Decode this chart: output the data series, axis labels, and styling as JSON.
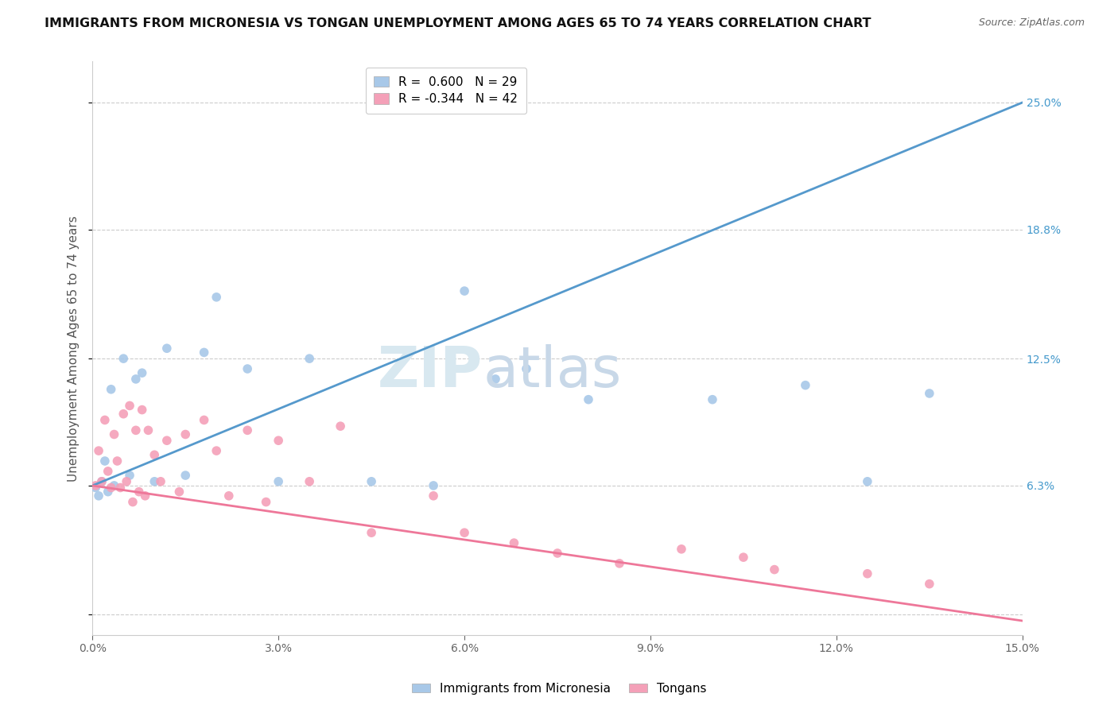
{
  "title": "IMMIGRANTS FROM MICRONESIA VS TONGAN UNEMPLOYMENT AMONG AGES 65 TO 74 YEARS CORRELATION CHART",
  "source": "Source: ZipAtlas.com",
  "ylabel": "Unemployment Among Ages 65 to 74 years",
  "xlim": [
    0.0,
    15.0
  ],
  "ylim": [
    -1.0,
    27.0
  ],
  "xticks": [
    0.0,
    3.0,
    6.0,
    9.0,
    12.0,
    15.0
  ],
  "xticklabels": [
    "0.0%",
    "3.0%",
    "6.0%",
    "9.0%",
    "12.0%",
    "15.0%"
  ],
  "ytick_positions": [
    0.0,
    6.3,
    12.5,
    18.8,
    25.0
  ],
  "ytick_labels": [
    "",
    "6.3%",
    "12.5%",
    "18.8%",
    "25.0%"
  ],
  "blue_color": "#a8c8e8",
  "pink_color": "#f4a0b8",
  "blue_line_color": "#5599cc",
  "pink_line_color": "#ee7799",
  "blue_label": "Immigrants from Micronesia",
  "pink_label": "Tongans",
  "blue_R": 0.6,
  "blue_N": 29,
  "pink_R": -0.344,
  "pink_N": 42,
  "watermark_zip": "ZIP",
  "watermark_atlas": "atlas",
  "background_color": "#ffffff",
  "blue_scatter_x": [
    0.05,
    0.1,
    0.15,
    0.2,
    0.25,
    0.3,
    0.35,
    0.5,
    0.6,
    0.7,
    0.8,
    1.0,
    1.2,
    1.5,
    1.8,
    2.0,
    2.5,
    3.0,
    3.5,
    4.5,
    5.5,
    6.0,
    6.5,
    7.0,
    8.0,
    10.0,
    11.5,
    12.5,
    13.5
  ],
  "blue_scatter_y": [
    6.2,
    5.8,
    6.5,
    7.5,
    6.0,
    11.0,
    6.3,
    12.5,
    6.8,
    11.5,
    11.8,
    6.5,
    13.0,
    6.8,
    12.8,
    15.5,
    12.0,
    6.5,
    12.5,
    6.5,
    6.3,
    15.8,
    11.5,
    12.0,
    10.5,
    10.5,
    11.2,
    6.5,
    10.8
  ],
  "pink_scatter_x": [
    0.05,
    0.1,
    0.15,
    0.2,
    0.25,
    0.3,
    0.35,
    0.4,
    0.45,
    0.5,
    0.55,
    0.6,
    0.65,
    0.7,
    0.75,
    0.8,
    0.85,
    0.9,
    1.0,
    1.1,
    1.2,
    1.4,
    1.5,
    1.8,
    2.0,
    2.2,
    2.5,
    2.8,
    3.0,
    3.5,
    4.0,
    4.5,
    5.5,
    6.0,
    6.8,
    7.5,
    8.5,
    9.5,
    10.5,
    11.0,
    12.5,
    13.5
  ],
  "pink_scatter_y": [
    6.3,
    8.0,
    6.5,
    9.5,
    7.0,
    6.2,
    8.8,
    7.5,
    6.2,
    9.8,
    6.5,
    10.2,
    5.5,
    9.0,
    6.0,
    10.0,
    5.8,
    9.0,
    7.8,
    6.5,
    8.5,
    6.0,
    8.8,
    9.5,
    8.0,
    5.8,
    9.0,
    5.5,
    8.5,
    6.5,
    9.2,
    4.0,
    5.8,
    4.0,
    3.5,
    3.0,
    2.5,
    3.2,
    2.8,
    2.2,
    2.0,
    1.5
  ],
  "title_fontsize": 11.5,
  "axis_label_fontsize": 11,
  "tick_fontsize": 10,
  "legend_fontsize": 11,
  "watermark_fontsize_zip": 52,
  "watermark_fontsize_atlas": 52,
  "marker_size": 70
}
